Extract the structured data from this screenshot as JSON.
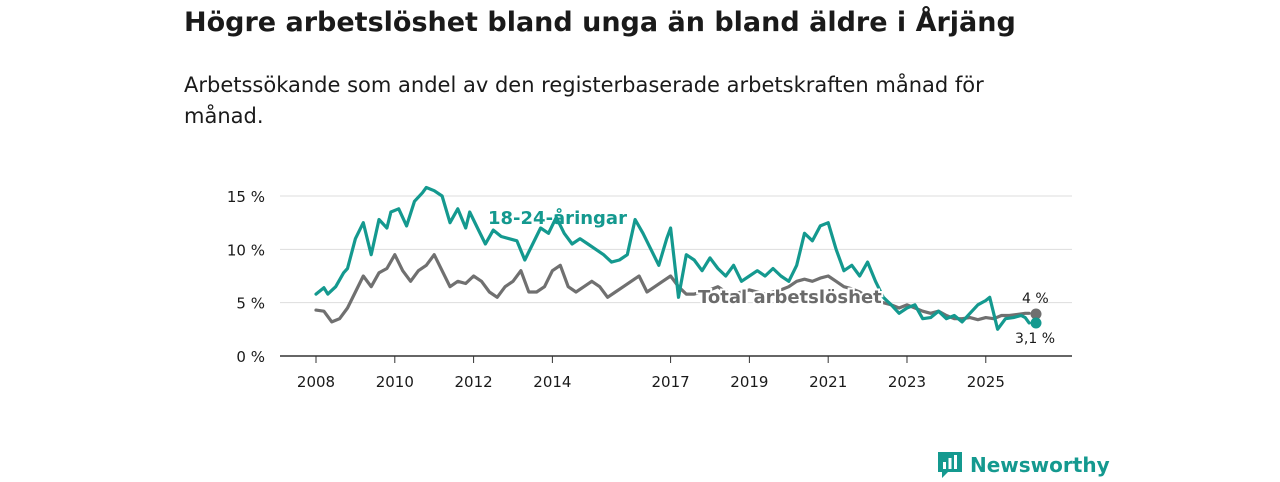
{
  "title": "Högre arbetslöshet bland unga än bland äldre i Årjäng",
  "subtitle": "Arbetssökande som andel av den registerbaserade arbetskraften månad för månad.",
  "brand": {
    "name": "Newsworthy",
    "logo_icon": "newsworthy-bar-chart-icon"
  },
  "colors": {
    "youth": "#14998f",
    "total": "#707070",
    "grid": "#dddddd",
    "axis": "#333333"
  },
  "chart_data": {
    "type": "line",
    "title": "Högre arbetslöshet bland unga än bland äldre i Årjäng",
    "subtitle": "Arbetssökande som andel av den registerbaserade arbetskraften månad för månad.",
    "xlabel": "",
    "ylabel": "",
    "ylim": [
      0,
      16
    ],
    "xlim": [
      2008.0,
      2026.3
    ],
    "y_ticks": [
      0,
      5,
      10,
      15
    ],
    "y_tick_labels": [
      "0 %",
      "5 %",
      "10 %",
      "15 %"
    ],
    "x_ticks": [
      2008,
      2010,
      2012,
      2014,
      2017,
      2019,
      2021,
      2023,
      2025
    ],
    "x_tick_labels": [
      "2008",
      "2010",
      "2012",
      "2014",
      "2017",
      "2019",
      "2021",
      "2023",
      "2025"
    ],
    "grid": true,
    "series": [
      {
        "name": "18-24-åringar",
        "color": "#14998f",
        "end_label": "3,1 %",
        "x": [
          2008.0,
          2008.2,
          2008.3,
          2008.5,
          2008.7,
          2008.8,
          2009.0,
          2009.2,
          2009.4,
          2009.6,
          2009.8,
          2009.9,
          2010.1,
          2010.3,
          2010.5,
          2010.7,
          2010.8,
          2011.0,
          2011.2,
          2011.4,
          2011.6,
          2011.8,
          2011.9,
          2012.1,
          2012.3,
          2012.5,
          2012.7,
          2012.9,
          2013.1,
          2013.3,
          2013.5,
          2013.7,
          2013.9,
          2014.1,
          2014.3,
          2014.5,
          2014.7,
          2014.9,
          2015.1,
          2015.3,
          2015.5,
          2015.7,
          2015.9,
          2016.1,
          2016.3,
          2016.5,
          2016.7,
          2016.9,
          2017.0,
          2017.2,
          2017.4,
          2017.6,
          2017.8,
          2018.0,
          2018.2,
          2018.4,
          2018.6,
          2018.8,
          2019.0,
          2019.2,
          2019.4,
          2019.6,
          2019.8,
          2020.0,
          2020.2,
          2020.4,
          2020.6,
          2020.8,
          2021.0,
          2021.2,
          2021.4,
          2021.6,
          2021.8,
          2022.0,
          2022.2,
          2022.4,
          2022.6,
          2022.8,
          2023.0,
          2023.2,
          2023.4,
          2023.6,
          2023.8,
          2024.0,
          2024.2,
          2024.4,
          2024.6,
          2024.8,
          2025.0,
          2025.1,
          2025.3,
          2025.5,
          2025.7,
          2025.9,
          2026.0,
          2026.1
        ],
        "values": [
          5.8,
          6.4,
          5.8,
          6.5,
          7.8,
          8.2,
          11.0,
          12.5,
          9.5,
          12.8,
          12.0,
          13.5,
          13.8,
          12.2,
          14.5,
          15.3,
          15.8,
          15.5,
          15.0,
          12.5,
          13.8,
          12.0,
          13.5,
          12.0,
          10.5,
          11.8,
          11.2,
          11.0,
          10.8,
          9.0,
          10.5,
          12.0,
          11.5,
          13.0,
          11.5,
          10.5,
          11.0,
          10.5,
          10.0,
          9.5,
          8.8,
          9.0,
          9.5,
          12.8,
          11.5,
          10.0,
          8.5,
          11.0,
          12.0,
          5.5,
          9.5,
          9.0,
          8.0,
          9.2,
          8.2,
          7.5,
          8.5,
          7.0,
          7.5,
          8.0,
          7.5,
          8.2,
          7.5,
          7.0,
          8.5,
          11.5,
          10.8,
          12.2,
          12.5,
          10.0,
          8.0,
          8.5,
          7.5,
          8.8,
          7.0,
          5.5,
          4.8,
          4.0,
          4.5,
          4.8,
          3.5,
          3.6,
          4.2,
          3.5,
          3.8,
          3.2,
          4.0,
          4.8,
          5.2,
          5.5,
          2.5,
          3.5,
          3.6,
          3.8,
          3.6,
          3.1
        ]
      },
      {
        "name": "Total arbetslöshet",
        "color": "#707070",
        "end_label": "4 %",
        "x": [
          2008.0,
          2008.2,
          2008.4,
          2008.6,
          2008.8,
          2009.0,
          2009.2,
          2009.4,
          2009.6,
          2009.8,
          2010.0,
          2010.2,
          2010.4,
          2010.6,
          2010.8,
          2011.0,
          2011.2,
          2011.4,
          2011.6,
          2011.8,
          2012.0,
          2012.2,
          2012.4,
          2012.6,
          2012.8,
          2013.0,
          2013.2,
          2013.4,
          2013.6,
          2013.8,
          2014.0,
          2014.2,
          2014.4,
          2014.6,
          2014.8,
          2015.0,
          2015.2,
          2015.4,
          2015.6,
          2015.8,
          2016.0,
          2016.2,
          2016.4,
          2016.6,
          2016.8,
          2017.0,
          2017.2,
          2017.4,
          2017.6,
          2017.8,
          2018.0,
          2018.2,
          2018.4,
          2018.6,
          2018.8,
          2019.0,
          2019.2,
          2019.4,
          2019.6,
          2019.8,
          2020.0,
          2020.2,
          2020.4,
          2020.6,
          2020.8,
          2021.0,
          2021.2,
          2021.4,
          2021.6,
          2021.8,
          2022.0,
          2022.2,
          2022.4,
          2022.6,
          2022.8,
          2023.0,
          2023.2,
          2023.4,
          2023.6,
          2023.8,
          2024.0,
          2024.2,
          2024.4,
          2024.6,
          2024.8,
          2025.0,
          2025.2,
          2025.4,
          2025.6,
          2025.8,
          2026.0,
          2026.1
        ],
        "values": [
          4.3,
          4.2,
          3.2,
          3.5,
          4.5,
          6.0,
          7.5,
          6.5,
          7.8,
          8.2,
          9.5,
          8.0,
          7.0,
          8.0,
          8.5,
          9.5,
          8.0,
          6.5,
          7.0,
          6.8,
          7.5,
          7.0,
          6.0,
          5.5,
          6.5,
          7.0,
          8.0,
          6.0,
          6.0,
          6.5,
          8.0,
          8.5,
          6.5,
          6.0,
          6.5,
          7.0,
          6.5,
          5.5,
          6.0,
          6.5,
          7.0,
          7.5,
          6.0,
          6.5,
          7.0,
          7.5,
          6.5,
          5.8,
          5.8,
          6.0,
          6.2,
          6.5,
          6.0,
          5.8,
          6.0,
          6.2,
          6.0,
          5.8,
          6.0,
          6.2,
          6.5,
          7.0,
          7.2,
          7.0,
          7.3,
          7.5,
          7.0,
          6.5,
          6.3,
          6.0,
          5.5,
          5.2,
          5.0,
          4.8,
          4.5,
          4.8,
          4.5,
          4.2,
          4.0,
          4.2,
          3.8,
          3.5,
          3.5,
          3.6,
          3.4,
          3.6,
          3.5,
          3.8,
          3.8,
          3.9,
          4.0,
          4.0
        ]
      }
    ],
    "annotations": [
      {
        "text": "18-24-åringar",
        "series": "18-24-åringar"
      },
      {
        "text": "Total arbetslöshet",
        "series": "Total arbetslöshet"
      }
    ]
  }
}
